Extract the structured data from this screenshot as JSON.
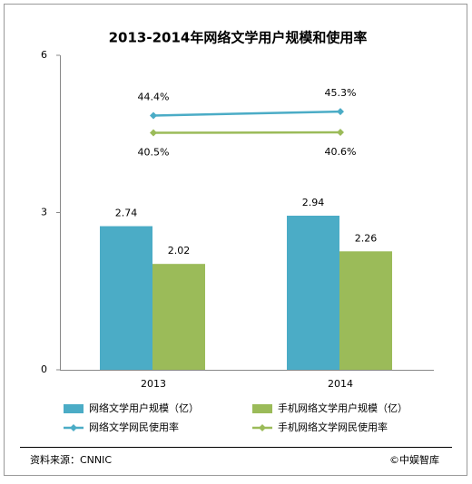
{
  "chart_data": {
    "type": "bar",
    "title": "2013-2014年网络文学用户规模和使用率",
    "categories": [
      "2013",
      "2014"
    ],
    "series": [
      {
        "name": "网络文学用户规模（亿）",
        "color": "#4bacc6",
        "values": [
          2.74,
          2.94
        ]
      },
      {
        "name": "手机网络文学用户规模（亿）",
        "color": "#9bbb59",
        "values": [
          2.02,
          2.26
        ]
      },
      {
        "name": "网络文学网民使用率",
        "type": "line",
        "axis": "y2",
        "color": "#4bacc6",
        "values": [
          44.4,
          45.3
        ],
        "value_labels": [
          "44.4%",
          "45.3%"
        ]
      },
      {
        "name": "手机网络文学网民使用率",
        "type": "line",
        "axis": "y2",
        "color": "#9bbb59",
        "values": [
          40.5,
          40.6
        ],
        "value_labels": [
          "40.5%",
          "40.6%"
        ]
      }
    ],
    "ylim": [
      0,
      6
    ],
    "yticks": [
      0,
      3,
      6
    ],
    "y2lim": [
      -13,
      58
    ],
    "grid": false,
    "source": "资料来源：CNNIC",
    "credit": "©中娱智库"
  }
}
